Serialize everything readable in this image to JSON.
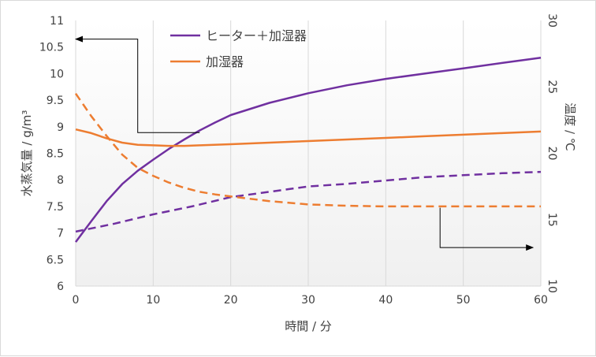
{
  "chart_data": {
    "type": "line",
    "xlabel": "時間 / 分",
    "ylabel": "水蒸気量 / g/m³",
    "y2label": "温度 / ℃",
    "xlim": [
      0,
      60
    ],
    "ylim": [
      6,
      11
    ],
    "y2lim": [
      10,
      30
    ],
    "x_ticks": [
      "0",
      "10",
      "20",
      "30",
      "40",
      "50",
      "60"
    ],
    "y_ticks": [
      "6",
      "6.5",
      "7",
      "7.5",
      "8",
      "8.5",
      "9",
      "9.5",
      "10",
      "10.5",
      "11"
    ],
    "y2_ticks": [
      "10",
      "15",
      "20",
      "25",
      "30"
    ],
    "grid": {
      "vertical": true,
      "horizontal": false
    },
    "background": "gradient",
    "legend": {
      "placement": "top-center",
      "entries": [
        {
          "label": "ヒーター＋加湿器",
          "color": "#7030a0"
        },
        {
          "label": "加湿器",
          "color": "#ed7d31"
        }
      ]
    },
    "series": [
      {
        "label_ref": 0,
        "axis": "left",
        "style": "solid",
        "color": "#7030a0",
        "x": [
          0,
          2,
          4,
          6,
          8,
          10,
          12,
          14,
          16,
          18,
          20,
          25,
          30,
          35,
          40,
          45,
          50,
          55,
          60
        ],
        "values": [
          6.83,
          7.22,
          7.6,
          7.92,
          8.17,
          8.38,
          8.58,
          8.76,
          8.93,
          9.08,
          9.22,
          9.45,
          9.63,
          9.78,
          9.9,
          10.0,
          10.1,
          10.2,
          10.3
        ]
      },
      {
        "label_ref": 1,
        "axis": "left",
        "style": "solid",
        "color": "#ed7d31",
        "x": [
          0,
          2,
          4,
          6,
          8,
          10,
          12,
          14,
          16,
          20,
          25,
          30,
          35,
          40,
          45,
          50,
          55,
          60
        ],
        "values": [
          8.95,
          8.88,
          8.78,
          8.7,
          8.66,
          8.65,
          8.64,
          8.64,
          8.65,
          8.67,
          8.7,
          8.73,
          8.76,
          8.79,
          8.82,
          8.85,
          8.88,
          8.91
        ]
      },
      {
        "label_ref": 0,
        "axis": "right",
        "style": "dashed",
        "color": "#7030a0",
        "x": [
          0,
          5,
          10,
          15,
          20,
          25,
          30,
          35,
          40,
          45,
          50,
          55,
          60
        ],
        "values": [
          14.1,
          14.7,
          15.4,
          16.0,
          16.7,
          17.1,
          17.5,
          17.7,
          17.95,
          18.2,
          18.35,
          18.5,
          18.6
        ]
      },
      {
        "label_ref": 1,
        "axis": "right",
        "style": "dashed",
        "color": "#ed7d31",
        "x": [
          0,
          2,
          4,
          6,
          8,
          10,
          12,
          14,
          16,
          18,
          20,
          25,
          30,
          35,
          40,
          45,
          50,
          55,
          60
        ],
        "values": [
          24.5,
          22.8,
          21.3,
          19.9,
          18.9,
          18.3,
          17.8,
          17.4,
          17.1,
          16.9,
          16.75,
          16.4,
          16.15,
          16.05,
          16.0,
          16.0,
          16.0,
          16.0,
          16.0
        ]
      }
    ],
    "annotations": [
      {
        "type": "arrow",
        "points": [
          [
            16,
            8.89
          ],
          [
            8,
            8.89
          ],
          [
            8,
            10.65
          ],
          [
            0,
            10.65
          ]
        ],
        "target_axis": "left"
      },
      {
        "type": "arrow",
        "points": [
          [
            47,
            15.9
          ],
          [
            47,
            12.9
          ],
          [
            59,
            12.9
          ]
        ],
        "target_axis": "right"
      }
    ]
  }
}
